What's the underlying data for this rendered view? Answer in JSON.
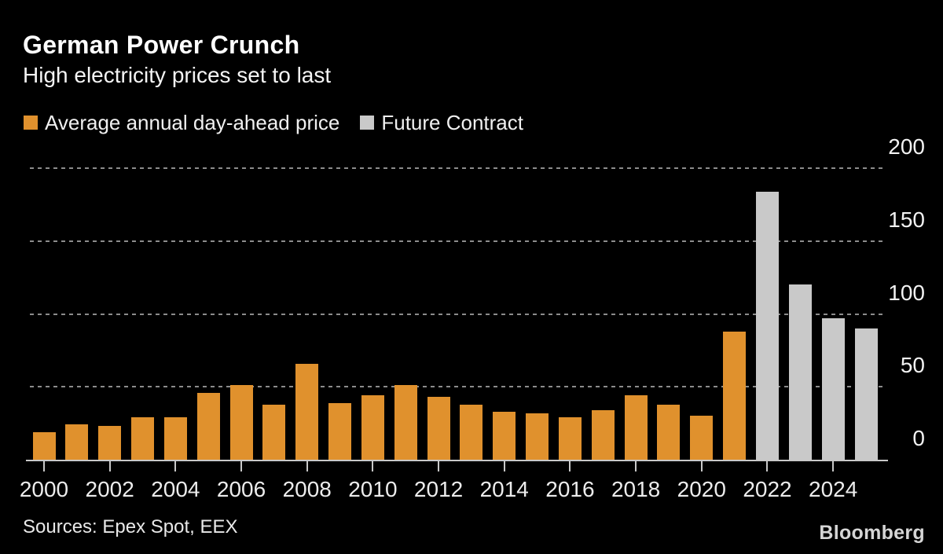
{
  "header": {
    "title": "German Power Crunch",
    "subtitle": "High electricity prices set to last"
  },
  "legend": [
    {
      "label": "Average annual day-ahead price",
      "color": "#E0912D"
    },
    {
      "label": "Future Contract",
      "color": "#C9C9C9"
    }
  ],
  "chart_data": {
    "type": "bar",
    "title": "German Power Crunch",
    "subtitle": "High electricity prices set to last",
    "categories": [
      2000,
      2001,
      2002,
      2003,
      2004,
      2005,
      2006,
      2007,
      2008,
      2009,
      2010,
      2011,
      2012,
      2013,
      2014,
      2015,
      2016,
      2017,
      2018,
      2019,
      2020,
      2021,
      2022,
      2023,
      2024,
      2025
    ],
    "series": [
      {
        "name": "Average annual day-ahead price",
        "color": "#E0912D",
        "values": [
          19,
          24,
          23,
          29,
          29,
          46,
          51,
          38,
          66,
          39,
          44,
          51,
          43,
          38,
          33,
          32,
          29,
          34,
          44,
          38,
          30,
          88,
          null,
          null,
          null,
          null
        ]
      },
      {
        "name": "Future Contract",
        "color": "#C9C9C9",
        "values": [
          null,
          null,
          null,
          null,
          null,
          null,
          null,
          null,
          null,
          null,
          null,
          null,
          null,
          null,
          null,
          null,
          null,
          null,
          null,
          null,
          null,
          null,
          184,
          120,
          97,
          90
        ]
      }
    ],
    "ylim": [
      0,
      200
    ],
    "yticks": [
      0,
      50,
      100,
      150,
      200
    ],
    "ytick_labels": [
      "0",
      "50",
      "100",
      "150",
      "200"
    ],
    "xtick_labels": [
      "2000",
      "2002",
      "2004",
      "2006",
      "2008",
      "2010",
      "2012",
      "2014",
      "2016",
      "2018",
      "2020",
      "2022",
      "2024"
    ],
    "grid": "horizontal-dashed",
    "legend_position": "top-left",
    "y_axis_side": "right"
  },
  "footer": {
    "sources": "Sources: Epex Spot, EEX",
    "brand": "Bloomberg"
  },
  "colors": {
    "background": "#000000",
    "grid": "#8C8C8C",
    "axis": "#C9C9C9",
    "title_text": "#FFFFFF"
  }
}
